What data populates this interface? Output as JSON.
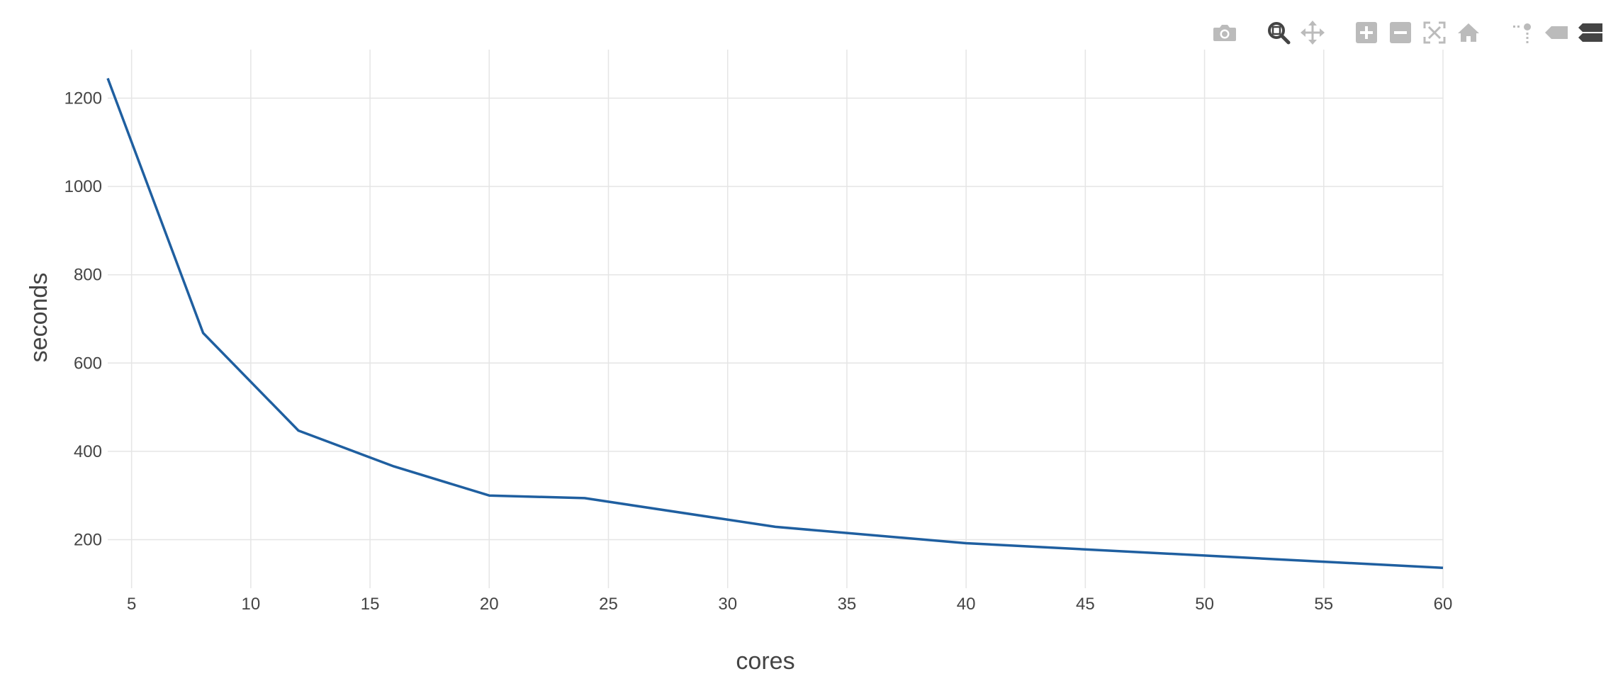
{
  "chart_data": {
    "type": "line",
    "title": "",
    "xlabel": "cores",
    "ylabel": "seconds",
    "xlim": [
      4,
      60
    ],
    "ylim": [
      90,
      1310
    ],
    "x_ticks": [
      5,
      10,
      15,
      20,
      25,
      30,
      35,
      40,
      45,
      50,
      55,
      60
    ],
    "y_ticks": [
      200,
      400,
      600,
      800,
      1000,
      1200
    ],
    "grid": true,
    "legend": "none",
    "series": [
      {
        "color": "#1f5fa0",
        "x": [
          4,
          8,
          12,
          16,
          20,
          24,
          32,
          40,
          60
        ],
        "y": [
          1245,
          668,
          447,
          366,
          300,
          294,
          229,
          192,
          136
        ]
      }
    ]
  },
  "modebar": {
    "icons": [
      {
        "name": "camera-icon",
        "label": "Download plot as a png"
      },
      {
        "name": "zoom-icon",
        "label": "Zoom",
        "active": true
      },
      {
        "name": "pan-icon",
        "label": "Pan"
      },
      {
        "name": "zoom-in-icon",
        "label": "Zoom in"
      },
      {
        "name": "zoom-out-icon",
        "label": "Zoom out"
      },
      {
        "name": "autoscale-icon",
        "label": "Autoscale"
      },
      {
        "name": "home-icon",
        "label": "Reset axes"
      },
      {
        "name": "spike-lines-icon",
        "label": "Toggle Spike Lines"
      },
      {
        "name": "hover-closest-icon",
        "label": "Show closest data on hover"
      },
      {
        "name": "hover-compare-icon",
        "label": "Compare data on hover"
      }
    ],
    "colors": {
      "inactive": "#bbbbbb",
      "active": "#444444"
    }
  }
}
